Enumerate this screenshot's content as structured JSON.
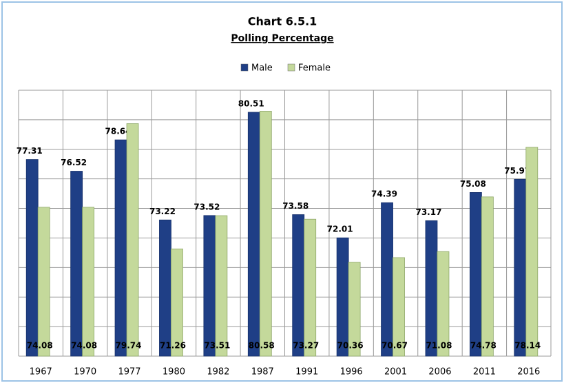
{
  "chart_data": {
    "type": "bar",
    "title": "Chart 6.5.1",
    "subtitle": "Polling Percentage",
    "categories": [
      "1967",
      "1970",
      "1977",
      "1980",
      "1982",
      "1987",
      "1991",
      "1996",
      "2001",
      "2006",
      "2011",
      "2016"
    ],
    "series": [
      {
        "name": "Male",
        "color": "#1f3f86",
        "values": [
          77.31,
          76.52,
          78.64,
          73.22,
          73.52,
          80.51,
          73.58,
          72.01,
          74.39,
          73.17,
          75.08,
          75.97
        ]
      },
      {
        "name": "Female",
        "color": "#c4d99b",
        "values": [
          74.08,
          74.08,
          79.74,
          71.26,
          73.51,
          80.58,
          73.27,
          70.36,
          70.67,
          71.08,
          74.78,
          78.14
        ]
      }
    ],
    "ylim": [
      64,
      82
    ],
    "yticks": [
      64,
      66,
      68,
      70,
      72,
      74,
      76,
      78,
      80,
      82
    ],
    "grid": true,
    "legend": "top"
  }
}
